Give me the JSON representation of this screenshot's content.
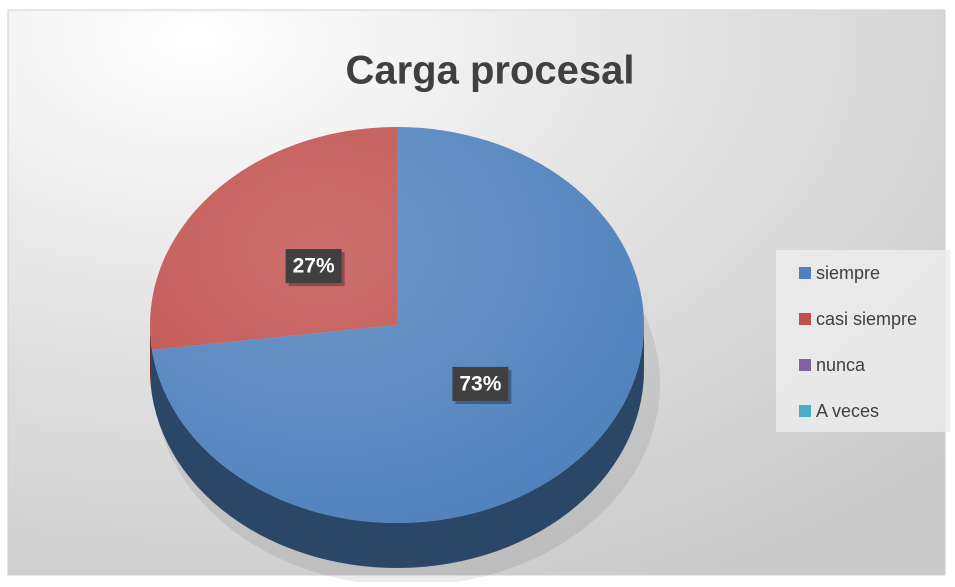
{
  "chart_data": {
    "type": "pie",
    "title": "Carga procesal",
    "categories": [
      "siempre",
      "casi siempre",
      "nunca",
      "A veces"
    ],
    "values": [
      73,
      27,
      0,
      0
    ],
    "value_labels": [
      "73%",
      "27%",
      null,
      null
    ],
    "colors": [
      "#4f81bd",
      "#c0504d",
      "#8064a2",
      "#4bacc6"
    ],
    "legend": "right"
  }
}
